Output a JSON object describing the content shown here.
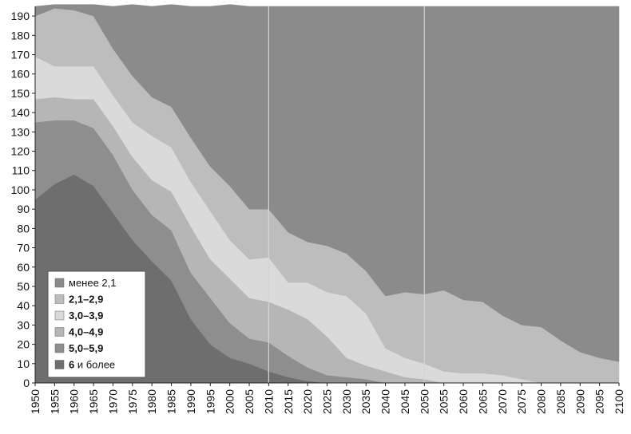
{
  "chart_data": {
    "type": "area",
    "title": "",
    "xlabel": "",
    "ylabel": "",
    "xlim": [
      1950,
      2100
    ],
    "ylim": [
      0,
      195
    ],
    "x_ticks": [
      1950,
      1955,
      1960,
      1965,
      1970,
      1975,
      1980,
      1985,
      1990,
      1995,
      2000,
      2005,
      2010,
      2015,
      2020,
      2025,
      2030,
      2035,
      2040,
      2045,
      2050,
      2055,
      2060,
      2065,
      2070,
      2075,
      2080,
      2085,
      2090,
      2095,
      2100
    ],
    "y_ticks": [
      0,
      10,
      20,
      30,
      40,
      50,
      60,
      70,
      80,
      90,
      100,
      110,
      120,
      130,
      140,
      150,
      160,
      170,
      180,
      190
    ],
    "vertical_lines": [
      2010,
      2050
    ],
    "stacked": true,
    "x": [
      1950,
      1955,
      1960,
      1965,
      1970,
      1975,
      1980,
      1985,
      1990,
      1995,
      2000,
      2005,
      2010,
      2015,
      2020,
      2025,
      2030,
      2035,
      2040,
      2045,
      2050,
      2055,
      2060,
      2065,
      2070,
      2075,
      2080,
      2085,
      2090,
      2095,
      2100
    ],
    "series": [
      {
        "name": "6 и более",
        "name_bold": "6",
        "name_rest": " и более",
        "color": "#6e6e6e",
        "values": [
          95,
          103,
          108,
          102,
          88,
          74,
          63,
          53,
          33,
          20,
          13,
          10,
          6,
          3,
          1,
          0,
          0,
          0,
          0,
          0,
          0,
          0,
          0,
          0,
          0,
          0,
          0,
          0,
          0,
          0,
          0
        ]
      },
      {
        "name": "5,0–5,9",
        "name_bold": "5,0–5,9",
        "name_rest": "",
        "color": "#8e8e8e",
        "values": [
          40,
          33,
          28,
          30,
          30,
          26,
          24,
          26,
          24,
          24,
          18,
          13,
          15,
          11,
          7,
          4,
          3,
          2,
          0,
          0,
          0,
          0,
          0,
          0,
          0,
          0,
          0,
          0,
          0,
          0,
          0
        ]
      },
      {
        "name": "4,0–4,9",
        "name_bold": "4,0–4,9",
        "name_rest": "",
        "color": "#b6b6b6",
        "values": [
          12,
          12,
          11,
          15,
          15,
          17,
          18,
          20,
          24,
          20,
          23,
          21,
          21,
          24,
          25,
          20,
          10,
          7,
          6,
          3,
          2,
          0,
          0,
          0,
          0,
          0,
          0,
          0,
          0,
          0,
          0
        ]
      },
      {
        "name": "3,0–3,9",
        "name_bold": "3,0–3,9",
        "name_rest": "",
        "color": "#dadada",
        "values": [
          22,
          16,
          17,
          17,
          16,
          18,
          23,
          23,
          23,
          25,
          20,
          20,
          23,
          14,
          19,
          23,
          32,
          27,
          12,
          10,
          8,
          6,
          5,
          5,
          4,
          2,
          0,
          0,
          0,
          0,
          0
        ]
      },
      {
        "name": "2,1–2,9",
        "name_bold": "2,1–2,9",
        "name_rest": "",
        "color": "#bdbdbd",
        "values": [
          21,
          30,
          29,
          26,
          24,
          24,
          20,
          21,
          23,
          23,
          28,
          26,
          25,
          26,
          21,
          24,
          22,
          22,
          27,
          34,
          36,
          42,
          38,
          37,
          31,
          28,
          29,
          22,
          16,
          13,
          11
        ]
      },
      {
        "name": "менее 2,1",
        "name_bold": "",
        "name_rest": "менее 2,1",
        "color": "#8b8b8b",
        "values": [
          5,
          2,
          3,
          6,
          22,
          37,
          47,
          53,
          68,
          83,
          94,
          105,
          105,
          117,
          122,
          124,
          128,
          137,
          150,
          148,
          149,
          147,
          152,
          153,
          160,
          165,
          166,
          173,
          179,
          182,
          184
        ]
      }
    ],
    "legend_order": [
      "менее 2,1",
      "2,1–2,9",
      "3,0–3,9",
      "4,0–4,9",
      "5,0–5,9",
      "6 и более"
    ],
    "legend_position": "bottom-left",
    "background_color": "#898989",
    "grid": false
  }
}
